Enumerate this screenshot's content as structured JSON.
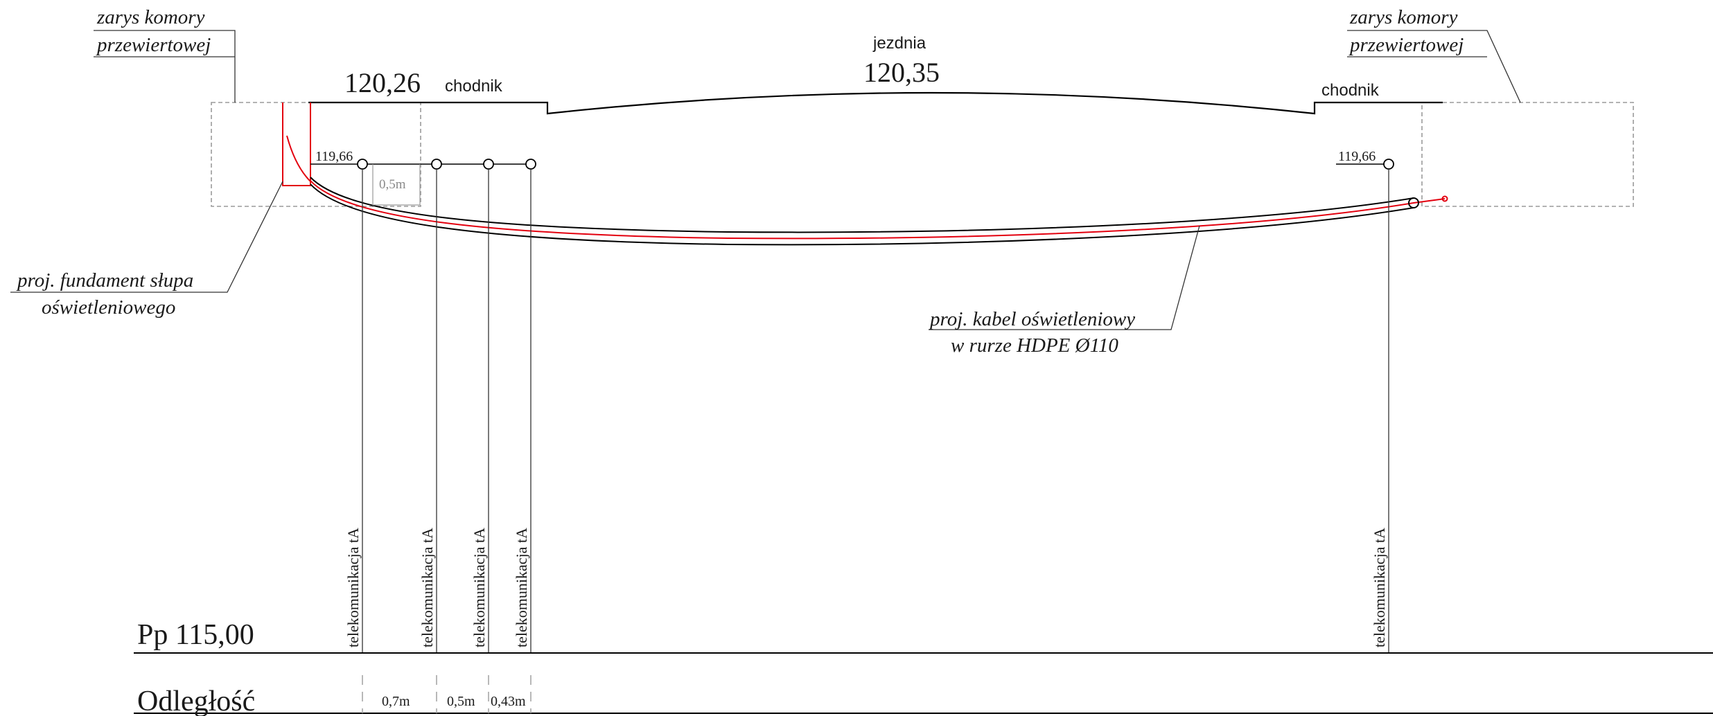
{
  "labels": {
    "chamber_left_1": "zarys komory",
    "chamber_left_2": "przewiertowej",
    "chamber_right_1": "zarys komory",
    "chamber_right_2": "przewiertowej",
    "road": "jezdnia",
    "road_level": "120,35",
    "sidewalk_left": "chodnik",
    "sidewalk_left_level": "120,26",
    "sidewalk_right": "chodnik",
    "pipe_left_level": "119,66",
    "pipe_right_level": "119,66",
    "offset_label": "0,5m",
    "foundation_1": "proj. fundament słupa",
    "foundation_2": "oświetleniowego",
    "cable_1": "proj. kabel oświetleniowy",
    "cable_2": "w rurze HDPE Ø110",
    "reference_level": "Pp 115,00",
    "distance_row": "Odległość"
  },
  "utilities": [
    {
      "label": "telekomunikacja tA"
    },
    {
      "label": "telekomunikacja tA"
    },
    {
      "label": "telekomunikacja tA"
    },
    {
      "label": "telekomunikacja tA"
    },
    {
      "label": "telekomunikacja tA"
    }
  ],
  "distances": [
    "0,7m",
    "0,5m",
    "0,43m"
  ],
  "colors": {
    "line": "#000000",
    "cable": "#e3000f",
    "dashed": "#9a9a9a",
    "text": "#1a1a1a",
    "gray_text": "#8a8a8a"
  }
}
